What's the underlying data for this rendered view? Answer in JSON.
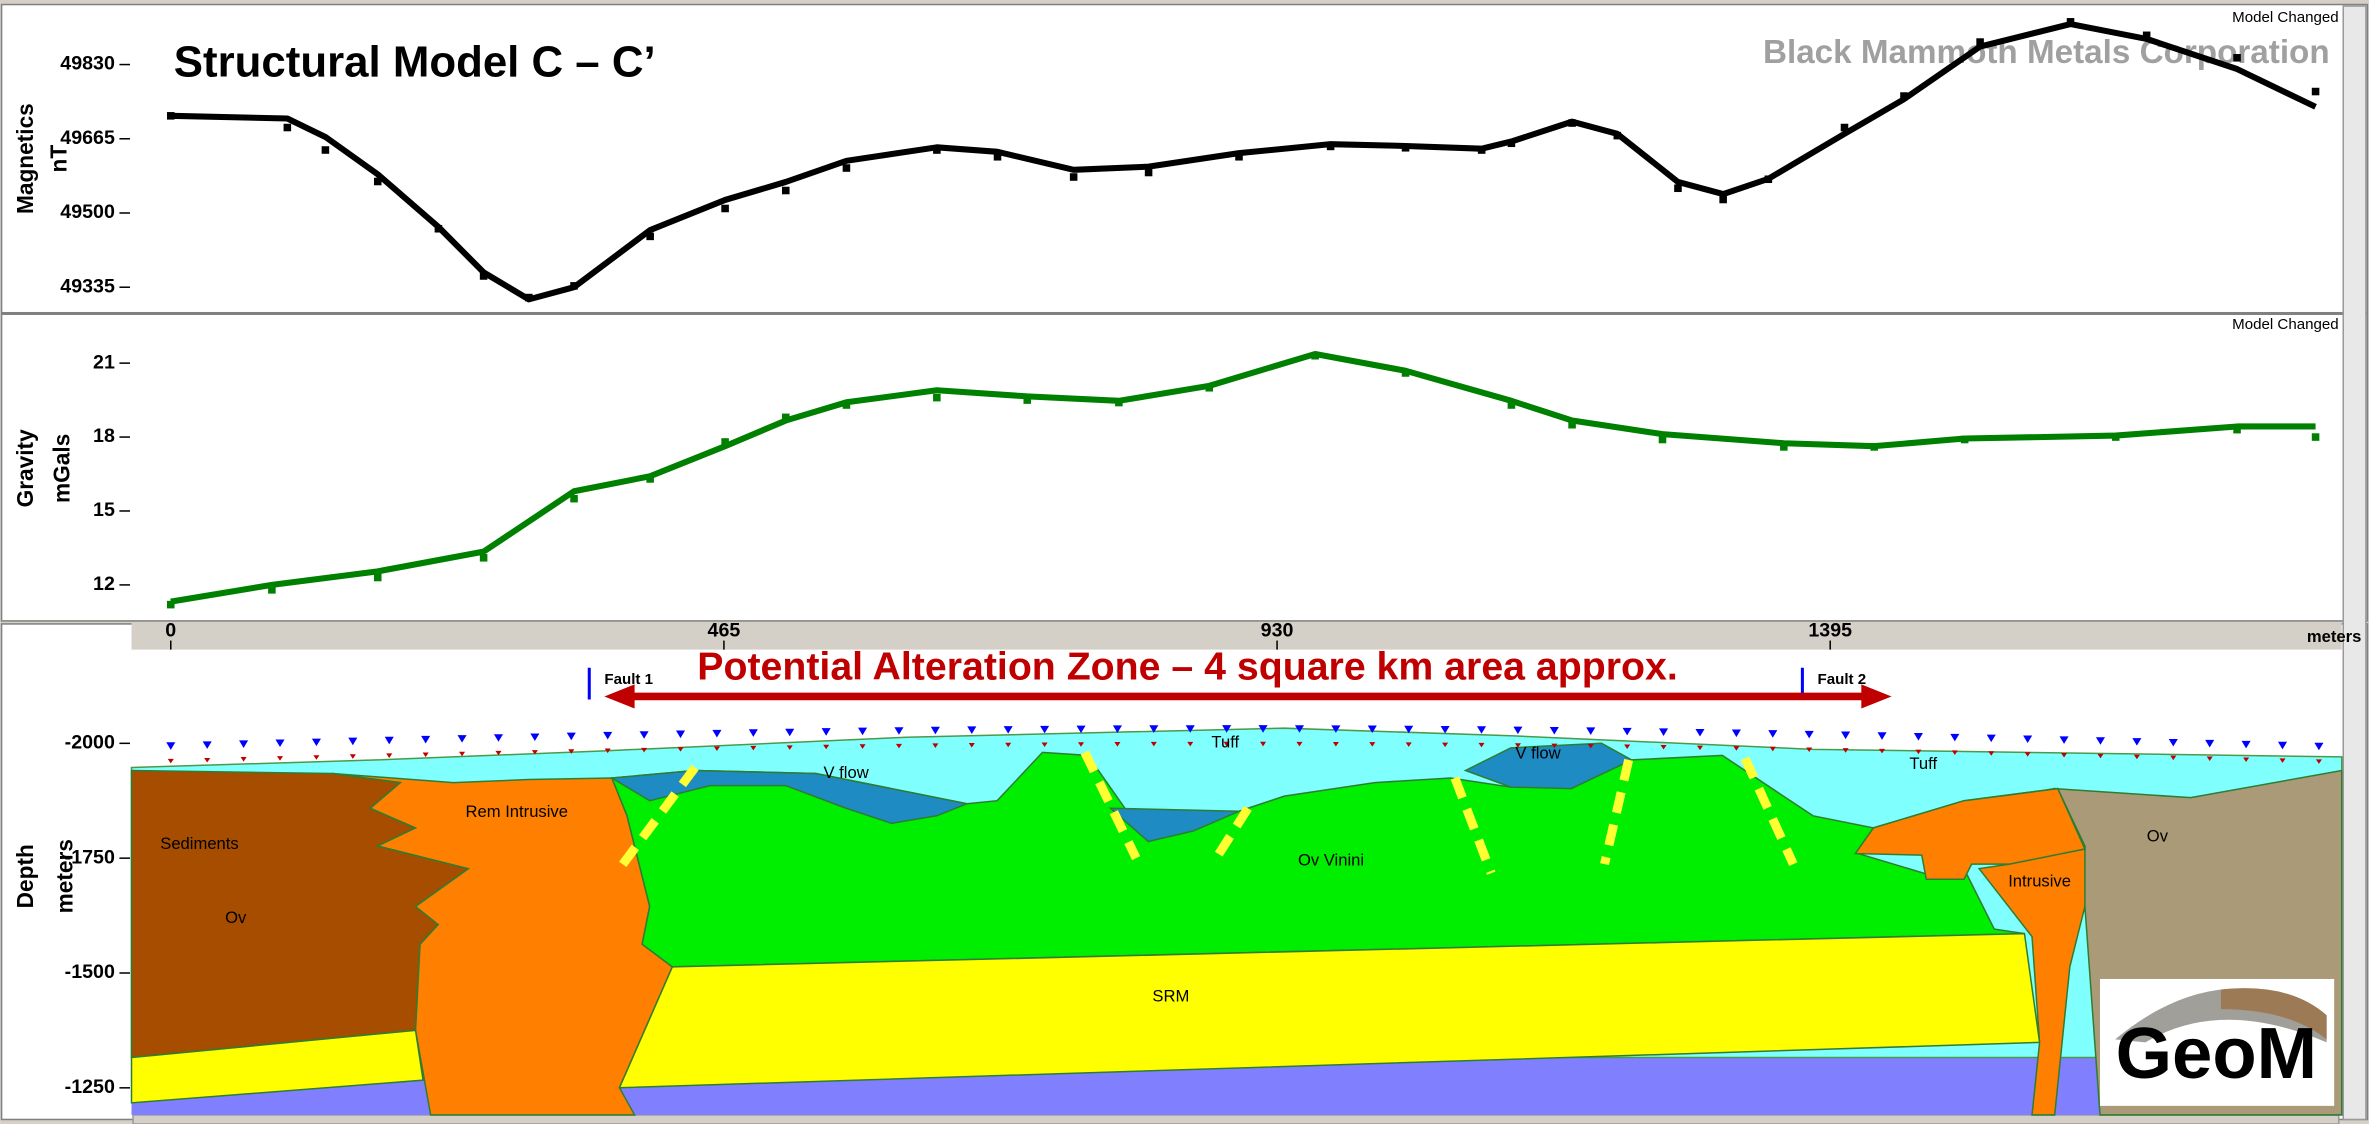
{
  "chart_data": [
    {
      "type": "line",
      "title": "Structural Model C – C’",
      "subtitle": "Black Mammoth Metals Corporation",
      "status": "Model Changed",
      "ylabel": [
        "Magnetics",
        "nT"
      ],
      "xlim": [
        -33,
        1825
      ],
      "ylim": [
        49285,
        49950
      ],
      "yticks": [
        49830,
        49665,
        49500,
        49335
      ],
      "x": [
        0,
        98,
        130,
        174,
        225,
        263,
        301,
        339,
        403,
        466,
        517,
        568,
        644,
        695,
        759,
        822,
        898,
        975,
        1038,
        1102,
        1127,
        1178,
        1216,
        1267,
        1305,
        1343,
        1407,
        1457,
        1521,
        1597,
        1661,
        1737,
        1803
      ],
      "series": [
        {
          "style": "dots",
          "color": "#000000",
          "values": [
            49716,
            49690,
            49640,
            49570,
            49465,
            49360,
            49312,
            49338,
            49448,
            49510,
            49550,
            49600,
            49640,
            49625,
            49580,
            49590,
            49625,
            49648,
            49645,
            49640,
            49655,
            49700,
            49672,
            49555,
            49530,
            49575,
            49690,
            49760,
            49880,
            49925,
            49895,
            49845,
            49770
          ]
        },
        {
          "style": "line",
          "color": "#000000",
          "values": [
            49716,
            49710,
            49669,
            49586,
            49469,
            49368,
            49308,
            49335,
            49462,
            49529,
            49569,
            49616,
            49646,
            49636,
            49596,
            49603,
            49633,
            49653,
            49649,
            49643,
            49659,
            49703,
            49676,
            49569,
            49542,
            49576,
            49676,
            49753,
            49870,
            49920,
            49887,
            49820,
            49736
          ]
        }
      ]
    },
    {
      "type": "line",
      "status": "Model Changed",
      "ylabel": [
        "Gravity",
        "mGals"
      ],
      "xlim": [
        -33,
        1825
      ],
      "ylim": [
        10.6,
        22.8
      ],
      "yticks": [
        21,
        18,
        15,
        12
      ],
      "x": [
        0,
        85,
        174,
        263,
        339,
        403,
        466,
        517,
        568,
        644,
        720,
        797,
        873,
        962,
        1038,
        1127,
        1178,
        1254,
        1356,
        1432,
        1508,
        1635,
        1737,
        1803
      ],
      "series": [
        {
          "style": "dots",
          "color": "#008000",
          "values": [
            11.2,
            11.8,
            12.3,
            13.1,
            15.5,
            16.3,
            17.8,
            18.8,
            19.3,
            19.6,
            19.5,
            19.4,
            20.0,
            21.3,
            20.6,
            19.3,
            18.5,
            17.9,
            17.6,
            17.6,
            17.9,
            18.0,
            18.3,
            18.0
          ]
        },
        {
          "style": "line",
          "color": "#008000",
          "values": [
            11.32,
            12.0,
            12.55,
            13.35,
            15.8,
            16.41,
            17.63,
            18.67,
            19.41,
            19.9,
            19.65,
            19.47,
            20.08,
            21.37,
            20.69,
            19.47,
            18.67,
            18.12,
            17.75,
            17.63,
            17.94,
            18.06,
            18.43,
            18.43
          ]
        }
      ]
    },
    {
      "type": "section",
      "ylabel": [
        "Depth",
        "meters"
      ],
      "xlabel": "meters",
      "xlim": [
        -33,
        1825
      ],
      "xticks": [
        0,
        465,
        930,
        1395
      ],
      "ylim": [
        -2204,
        -1191
      ],
      "yticks": [
        -2000,
        -1750,
        -1500,
        -1250
      ],
      "annotation": "Potential Alteration Zone – 4 square km area approx.",
      "faults": [
        "Fault 1",
        "Fault 2"
      ],
      "units": [
        "Sediments",
        "Ov",
        "Rem Intrusive",
        "V flow",
        "Tuff",
        "V flow",
        "Ov Vinini",
        "Tuff",
        "Intrusive",
        "Ov",
        "SRM"
      ],
      "logo": "GeoM"
    }
  ]
}
